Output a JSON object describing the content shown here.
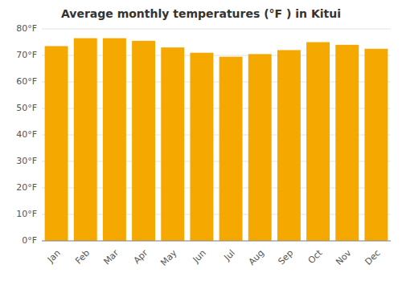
{
  "chart_data": {
    "type": "bar",
    "title": "Average monthly temperatures (°F ) in Kitui",
    "categories": [
      "Jan",
      "Feb",
      "Mar",
      "Apr",
      "May",
      "Jun",
      "Jul",
      "Aug",
      "Sep",
      "Oct",
      "Nov",
      "Dec"
    ],
    "values": [
      73.5,
      76.5,
      76.5,
      75.5,
      73.0,
      71.0,
      69.5,
      70.5,
      72.0,
      75.0,
      74.0,
      72.5
    ],
    "color": "#F5A800",
    "ylim": [
      0,
      80
    ],
    "yticks": [
      {
        "value": 0,
        "label": "0°F"
      },
      {
        "value": 10,
        "label": "10°F"
      },
      {
        "value": 20,
        "label": "20°F"
      },
      {
        "value": 30,
        "label": "30°F"
      },
      {
        "value": 40,
        "label": "40°F"
      },
      {
        "value": 50,
        "label": "50°F"
      },
      {
        "value": 60,
        "label": "60°F"
      },
      {
        "value": 70,
        "label": "70°F"
      },
      {
        "value": 80,
        "label": "80°F"
      }
    ],
    "grid": true
  }
}
